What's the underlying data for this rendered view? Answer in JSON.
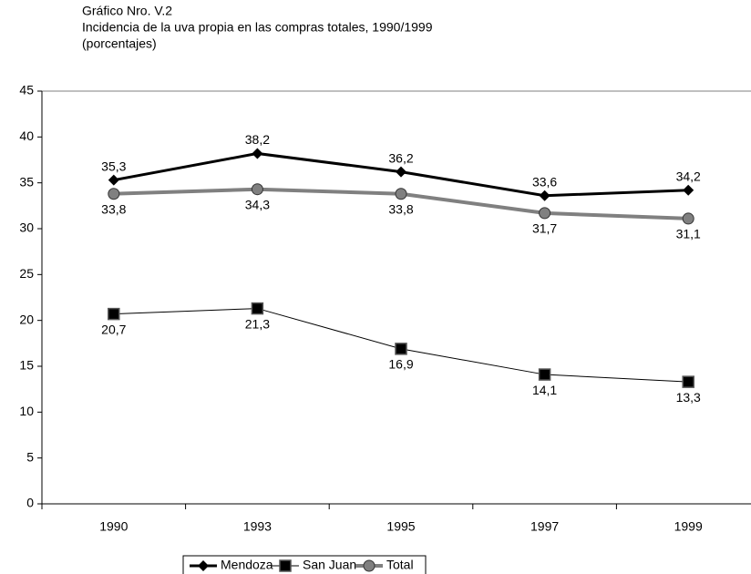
{
  "chart_data": {
    "type": "line",
    "title": "Gráfico Nro. V.2",
    "subtitle": "Incidencia de la uva propia en las compras totales, 1990/1999",
    "unit_note": "(porcentajes)",
    "categories": [
      "1990",
      "1993",
      "1995",
      "1997",
      "1999"
    ],
    "ylim": [
      0,
      45
    ],
    "yticks": [
      0,
      5,
      10,
      15,
      20,
      25,
      30,
      35,
      40,
      45
    ],
    "grid": false,
    "legend": "bottom",
    "series": [
      {
        "name": "Mendoza",
        "color": "#000000",
        "marker": "diamond",
        "line_width": 3,
        "label_position": "above",
        "values": [
          35.3,
          38.2,
          36.2,
          33.6,
          34.2
        ],
        "value_labels": [
          "35,3",
          "38,2",
          "36,2",
          "33,6",
          "34,2"
        ]
      },
      {
        "name": "San Juan",
        "color": "#000000",
        "marker": "square",
        "line_width": 1,
        "label_position": "below",
        "values": [
          20.7,
          21.3,
          16.9,
          14.1,
          13.3
        ],
        "value_labels": [
          "20,7",
          "21,3",
          "16,9",
          "14,1",
          "13,3"
        ]
      },
      {
        "name": "Total",
        "color": "#808080",
        "marker": "circle",
        "line_width": 4,
        "label_position": "below",
        "values": [
          33.8,
          34.3,
          33.8,
          31.7,
          31.1
        ],
        "value_labels": [
          "33,8",
          "34,3",
          "33,8",
          "31,7",
          "31,1"
        ]
      }
    ]
  }
}
